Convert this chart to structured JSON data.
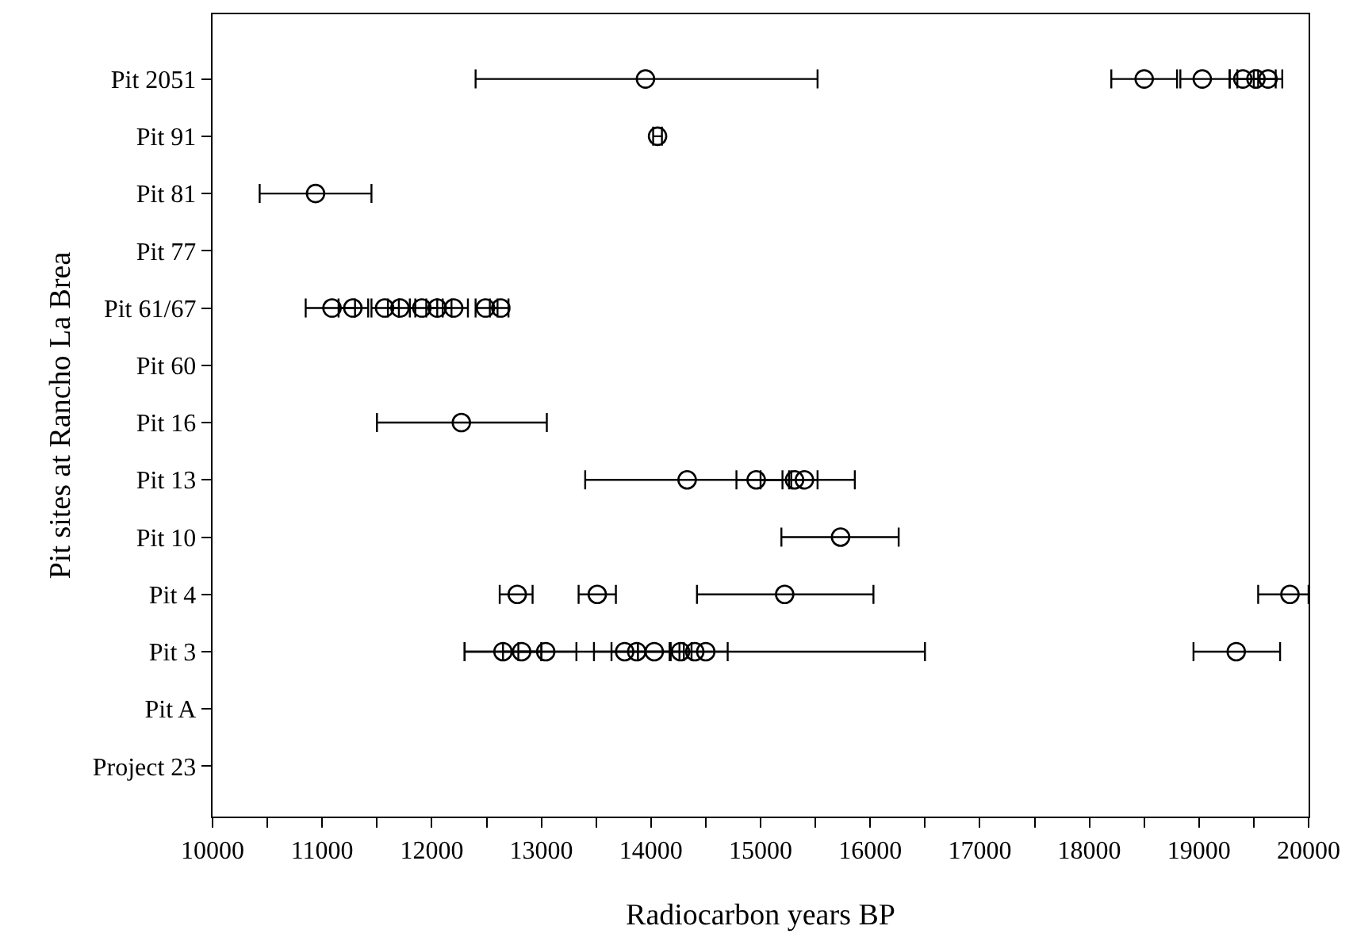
{
  "chart_data": {
    "type": "scatter",
    "orientation": "horizontal",
    "xlabel": "Radiocarbon years BP",
    "ylabel": "Pit sites at Rancho La Brea",
    "categories": [
      "Pit 2051",
      "Pit 91",
      "Pit 81",
      "Pit 77",
      "Pit 61/67",
      "Pit 60",
      "Pit 16",
      "Pit 13",
      "Pit 10",
      "Pit 4",
      "Pit 3",
      "Pit A",
      "Project 23"
    ],
    "xlim": [
      10000,
      20000
    ],
    "xticks": [
      10000,
      {
        "value": 10500,
        "label": null
      },
      11000,
      {
        "value": 11500,
        "label": null
      },
      12000,
      {
        "value": 12500,
        "label": null
      },
      13000,
      {
        "value": 13500,
        "label": null
      },
      14000,
      {
        "value": 14500,
        "label": null
      },
      15000,
      {
        "value": 15500,
        "label": null
      },
      16000,
      {
        "value": 16500,
        "label": null
      },
      17000,
      {
        "value": 17500,
        "label": null
      },
      18000,
      {
        "value": 18500,
        "label": null
      },
      19000,
      {
        "value": 19500,
        "label": null
      },
      20000
    ],
    "marker": "circle",
    "series": [
      {
        "color": "#000000",
        "x": [
          "Pit 2051",
          "Pit 2051",
          "Pit 2051",
          "Pit 2051",
          "Pit 2051",
          "Pit 2051",
          "Pit 91",
          "Pit 81",
          "Pit 61/67",
          "Pit 61/67",
          "Pit 61/67",
          "Pit 61/67",
          "Pit 61/67",
          "Pit 61/67",
          "Pit 61/67",
          "Pit 61/67",
          "Pit 61/67",
          "Pit 16",
          "Pit 13",
          "Pit 13",
          "Pit 13",
          "Pit 13",
          "Pit 10",
          "Pit 4",
          "Pit 4",
          "Pit 4",
          "Pit 4",
          "Pit 3",
          "Pit 3",
          "Pit 3",
          "Pit 3",
          "Pit 3",
          "Pit 3",
          "Pit 3",
          "Pit 3",
          "Pit 3",
          "Pit 3"
        ],
        "values": [
          13950,
          18500,
          19030,
          19400,
          19520,
          19630,
          14060,
          10940,
          11090,
          11280,
          11570,
          11710,
          11910,
          12050,
          12200,
          12490,
          12630,
          12270,
          14330,
          14960,
          15310,
          15400,
          15730,
          12780,
          13510,
          15220,
          19830,
          12650,
          12820,
          13040,
          13760,
          13870,
          14030,
          14270,
          14400,
          14500,
          19340
        ],
        "errors": [
          [
            12400,
            15520
          ],
          [
            18200,
            18800
          ],
          [
            18830,
            19280
          ],
          [
            19280,
            19540
          ],
          [
            19350,
            19700
          ],
          [
            19500,
            19760
          ],
          [
            14020,
            14100
          ],
          [
            10430,
            11450
          ],
          [
            10850,
            11300
          ],
          [
            11150,
            11420
          ],
          [
            11450,
            11700
          ],
          [
            11600,
            11850
          ],
          [
            11800,
            12050
          ],
          [
            11950,
            12180
          ],
          [
            12100,
            12330
          ],
          [
            12400,
            12600
          ],
          [
            12530,
            12700
          ],
          [
            11500,
            13050
          ],
          [
            13400,
            15260
          ],
          [
            14780,
            15200
          ],
          [
            15000,
            15520
          ],
          [
            15280,
            15860
          ],
          [
            15190,
            16260
          ],
          [
            12620,
            12920
          ],
          [
            13340,
            13680
          ],
          [
            14420,
            16030
          ],
          [
            19540,
            20000
          ],
          [
            12300,
            13000
          ],
          [
            12650,
            13000
          ],
          [
            12790,
            13320
          ],
          [
            13640,
            13880
          ],
          [
            13480,
            14260
          ],
          [
            13880,
            14180
          ],
          [
            14170,
            14370
          ],
          [
            12300,
            16500
          ],
          [
            14300,
            14700
          ],
          [
            18950,
            19740
          ]
        ]
      }
    ]
  }
}
